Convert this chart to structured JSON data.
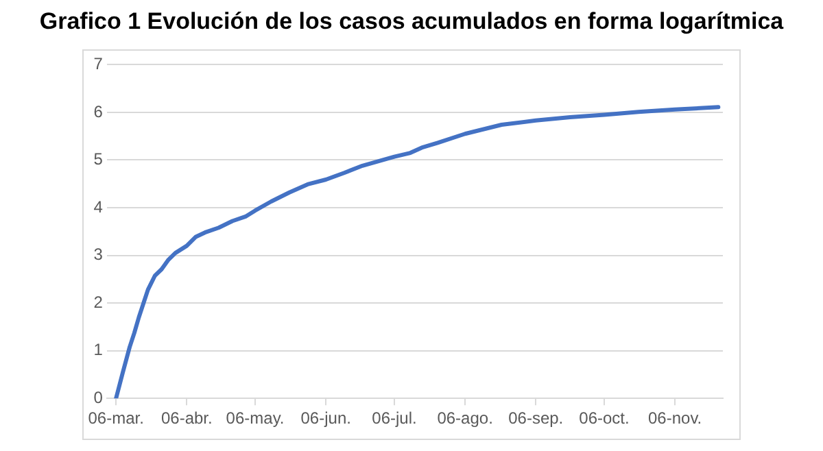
{
  "chart_data": {
    "type": "line",
    "title": "Grafico 1 Evolución de los casos acumulados en forma logarítmica",
    "x": [
      "--03-06",
      "--03-09",
      "--03-12",
      "--03-14",
      "--03-16",
      "--03-18",
      "--03-20",
      "--03-23",
      "--03-26",
      "--03-29",
      "--04-01",
      "--04-06",
      "--04-10",
      "--04-14",
      "--04-20",
      "--04-26",
      "--05-02",
      "--05-06",
      "--05-13",
      "--05-21",
      "--05-29",
      "--06-06",
      "--06-14",
      "--06-22",
      "--07-06",
      "--07-13",
      "--07-18",
      "--07-25",
      "--08-06",
      "--08-22",
      "--09-06",
      "--09-21",
      "--10-06",
      "--10-21",
      "--11-06",
      "--11-25"
    ],
    "series": [
      {
        "color": "#4472c4",
        "values": [
          0,
          0.55,
          1.08,
          1.37,
          1.7,
          1.99,
          2.28,
          2.57,
          2.71,
          2.91,
          3.05,
          3.2,
          3.39,
          3.48,
          3.58,
          3.72,
          3.82,
          3.94,
          4.13,
          4.32,
          4.49,
          4.59,
          4.73,
          4.88,
          5.07,
          5.15,
          5.26,
          5.36,
          5.55,
          5.74,
          5.83,
          5.9,
          5.95,
          6.01,
          6.06,
          6.11
        ]
      }
    ],
    "xlim": [
      "--03-02",
      "--11-27"
    ],
    "xticks": [
      {
        "value": "--03-06",
        "label": "06-mar."
      },
      {
        "value": "--04-06",
        "label": "06-abr."
      },
      {
        "value": "--05-06",
        "label": "06-may."
      },
      {
        "value": "--06-06",
        "label": "06-jun."
      },
      {
        "value": "--07-06",
        "label": "06-jul."
      },
      {
        "value": "--08-06",
        "label": "06-ago."
      },
      {
        "value": "--09-06",
        "label": "06-sep."
      },
      {
        "value": "--10-06",
        "label": "06-oct."
      },
      {
        "value": "--11-06",
        "label": "06-nov."
      }
    ],
    "ylim": [
      0,
      7
    ],
    "yticks": [
      0,
      1,
      2,
      3,
      4,
      5,
      6,
      7
    ],
    "grid": "y",
    "legend": false,
    "marker": "none",
    "line_style": "solid"
  }
}
